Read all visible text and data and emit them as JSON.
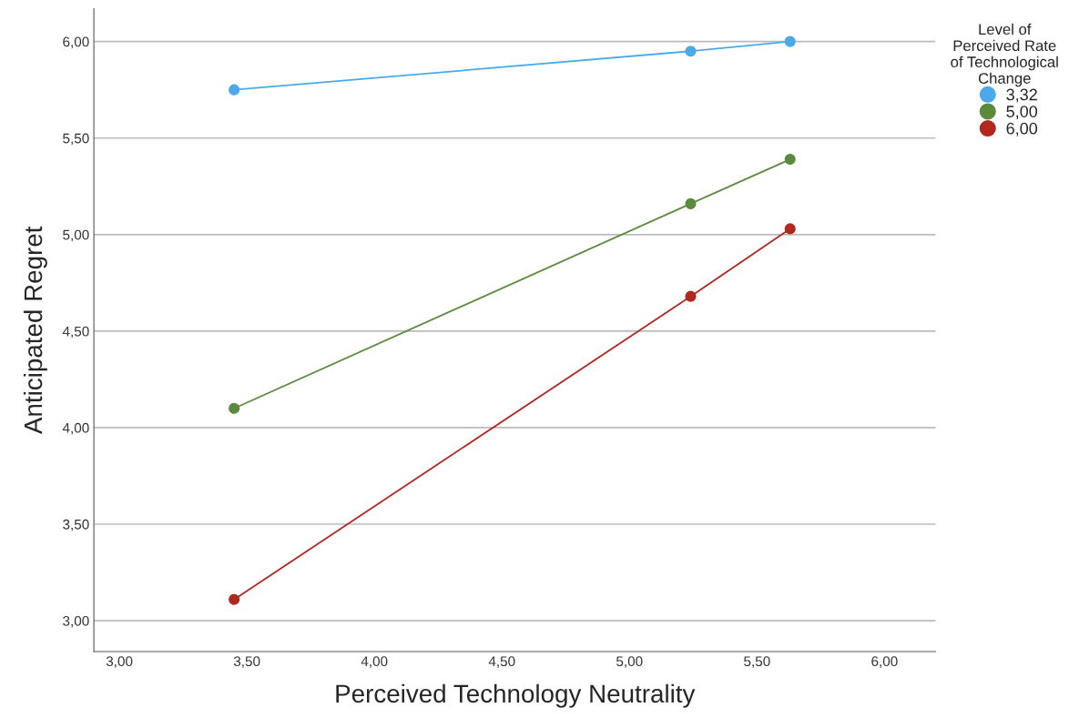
{
  "chart_data": {
    "type": "line",
    "xlabel": "Perceived Technology Neutrality",
    "ylabel": "Anticipated Regret",
    "legend_title": "Level of\nPerceived Rate\nof Technological\nChange",
    "series": [
      {
        "name": "3,32",
        "color": "#4ba9e9",
        "x": [
          3.45,
          5.24,
          5.63
        ],
        "values": [
          5.75,
          5.95,
          6.0
        ]
      },
      {
        "name": "5,00",
        "color": "#5b8a3d",
        "x": [
          3.45,
          5.24,
          5.63
        ],
        "values": [
          4.1,
          5.16,
          5.39
        ]
      },
      {
        "name": "6,00",
        "color": "#b1281f",
        "x": [
          3.45,
          5.24,
          5.63
        ],
        "values": [
          3.11,
          4.68,
          5.03
        ]
      }
    ],
    "xlim": [
      2.9,
      6.2
    ],
    "ylim": [
      2.84,
      6.17
    ],
    "xticks": [
      {
        "value": 3.0,
        "label": "3,00"
      },
      {
        "value": 3.5,
        "label": "3,50"
      },
      {
        "value": 4.0,
        "label": "4,00"
      },
      {
        "value": 4.5,
        "label": "4,50"
      },
      {
        "value": 5.0,
        "label": "5,00"
      },
      {
        "value": 5.5,
        "label": "5,50"
      },
      {
        "value": 6.0,
        "label": "6,00"
      }
    ],
    "yticks": [
      {
        "value": 3.0,
        "label": "3,00"
      },
      {
        "value": 3.5,
        "label": "3,50"
      },
      {
        "value": 4.0,
        "label": "4,00"
      },
      {
        "value": 4.5,
        "label": "4,50"
      },
      {
        "value": 5.0,
        "label": "5,00"
      },
      {
        "value": 5.5,
        "label": "5,50"
      },
      {
        "value": 6.0,
        "label": "6,00"
      }
    ],
    "grid": "y",
    "legend": "top right",
    "marker": "circle",
    "line_style": "solid"
  }
}
